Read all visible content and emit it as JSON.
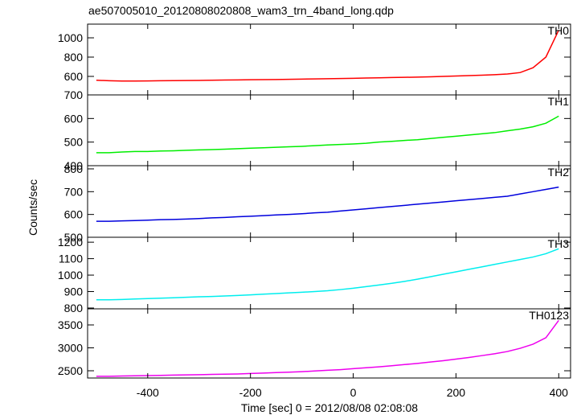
{
  "title": "ae507005010_20120808020808_wam3_trn_4band_long.qdp",
  "x_label": "Time [sec] 0 = 2012/08/08 02:08:08",
  "y_label": "Counts/sec",
  "chart_data": [
    {
      "type": "line",
      "x": [
        -500,
        -475,
        -450,
        -425,
        -400,
        -375,
        -350,
        -325,
        -300,
        -275,
        -250,
        -225,
        -200,
        -175,
        -150,
        -125,
        -100,
        -75,
        -50,
        -25,
        0,
        25,
        50,
        75,
        100,
        125,
        150,
        175,
        200,
        225,
        250,
        275,
        300,
        325,
        350,
        375,
        400
      ],
      "series": [
        {
          "name": "TH0",
          "color": "#ff0000",
          "values": [
            560,
            555,
            552,
            552,
            553,
            555,
            556,
            557,
            558,
            560,
            562,
            563,
            565,
            567,
            568,
            570,
            572,
            574,
            576,
            578,
            580,
            583,
            585,
            588,
            590,
            593,
            596,
            600,
            604,
            608,
            612,
            618,
            625,
            640,
            690,
            800,
            1080
          ]
        }
      ],
      "xlim": [
        -517,
        423
      ],
      "xticks": [
        -400,
        -200,
        0,
        200,
        400
      ],
      "ylim": [
        408,
        1142
      ],
      "yticks": [
        600,
        800,
        1000
      ]
    },
    {
      "type": "line",
      "x": [
        -500,
        -475,
        -450,
        -425,
        -400,
        -375,
        -350,
        -325,
        -300,
        -275,
        -250,
        -225,
        -200,
        -175,
        -150,
        -125,
        -100,
        -75,
        -50,
        -25,
        0,
        25,
        50,
        75,
        100,
        125,
        150,
        175,
        200,
        225,
        250,
        275,
        300,
        325,
        350,
        375,
        400
      ],
      "series": [
        {
          "name": "TH1",
          "color": "#00ee00",
          "values": [
            455,
            455,
            458,
            460,
            460,
            462,
            463,
            465,
            467,
            468,
            470,
            472,
            474,
            476,
            478,
            480,
            482,
            485,
            488,
            490,
            492,
            495,
            500,
            503,
            507,
            510,
            515,
            520,
            525,
            530,
            535,
            540,
            548,
            555,
            565,
            580,
            610
          ]
        }
      ],
      "xlim": [
        -517,
        423
      ],
      "xticks": [
        -400,
        -200,
        0,
        200,
        400
      ],
      "ylim": [
        400,
        700
      ],
      "yticks": [
        400,
        500,
        600,
        700
      ]
    },
    {
      "type": "line",
      "x": [
        -500,
        -475,
        -450,
        -425,
        -400,
        -375,
        -350,
        -325,
        -300,
        -275,
        -250,
        -225,
        -200,
        -175,
        -150,
        -125,
        -100,
        -75,
        -50,
        -25,
        0,
        25,
        50,
        75,
        100,
        125,
        150,
        175,
        200,
        225,
        250,
        275,
        300,
        325,
        350,
        375,
        400
      ],
      "series": [
        {
          "name": "TH2",
          "color": "#0000dd",
          "values": [
            570,
            570,
            572,
            573,
            575,
            577,
            578,
            580,
            582,
            585,
            587,
            590,
            592,
            595,
            598,
            600,
            603,
            607,
            610,
            615,
            620,
            625,
            630,
            635,
            640,
            645,
            650,
            655,
            660,
            665,
            670,
            675,
            680,
            690,
            700,
            710,
            720
          ]
        }
      ],
      "xlim": [
        -517,
        423
      ],
      "xticks": [
        -400,
        -200,
        0,
        200,
        400
      ],
      "ylim": [
        500,
        814
      ],
      "yticks": [
        500,
        600,
        700,
        800
      ]
    },
    {
      "type": "line",
      "x": [
        -500,
        -475,
        -450,
        -425,
        -400,
        -375,
        -350,
        -325,
        -300,
        -275,
        -250,
        -225,
        -200,
        -175,
        -150,
        -125,
        -100,
        -75,
        -50,
        -25,
        0,
        25,
        50,
        75,
        100,
        125,
        150,
        175,
        200,
        225,
        250,
        275,
        300,
        325,
        350,
        375,
        400
      ],
      "series": [
        {
          "name": "TH3",
          "color": "#00eeee",
          "values": [
            850,
            850,
            852,
            855,
            857,
            860,
            862,
            865,
            868,
            870,
            873,
            876,
            880,
            884,
            888,
            892,
            896,
            900,
            905,
            912,
            920,
            930,
            940,
            950,
            962,
            975,
            990,
            1005,
            1020,
            1035,
            1050,
            1065,
            1080,
            1095,
            1110,
            1130,
            1160
          ]
        }
      ],
      "xlim": [
        -517,
        423
      ],
      "xticks": [
        -400,
        -200,
        0,
        200,
        400
      ],
      "ylim": [
        795,
        1230
      ],
      "yticks": [
        800,
        900,
        1000,
        1100,
        1200
      ]
    },
    {
      "type": "line",
      "x": [
        -500,
        -475,
        -450,
        -425,
        -400,
        -375,
        -350,
        -325,
        -300,
        -275,
        -250,
        -225,
        -200,
        -175,
        -150,
        -125,
        -100,
        -75,
        -50,
        -25,
        0,
        25,
        50,
        75,
        100,
        125,
        150,
        175,
        200,
        225,
        250,
        275,
        300,
        325,
        350,
        375,
        400
      ],
      "series": [
        {
          "name": "TH0123",
          "color": "#ee00ee",
          "values": [
            2380,
            2380,
            2385,
            2390,
            2395,
            2400,
            2405,
            2410,
            2415,
            2420,
            2425,
            2430,
            2440,
            2450,
            2460,
            2470,
            2480,
            2495,
            2510,
            2525,
            2545,
            2565,
            2585,
            2610,
            2635,
            2660,
            2690,
            2720,
            2755,
            2790,
            2830,
            2870,
            2920,
            2990,
            3080,
            3220,
            3600
          ]
        }
      ],
      "xlim": [
        -517,
        423
      ],
      "xticks": [
        -400,
        -200,
        0,
        200,
        400
      ],
      "ylim": [
        2342,
        3851
      ],
      "yticks": [
        2500,
        3000,
        3500
      ]
    }
  ]
}
